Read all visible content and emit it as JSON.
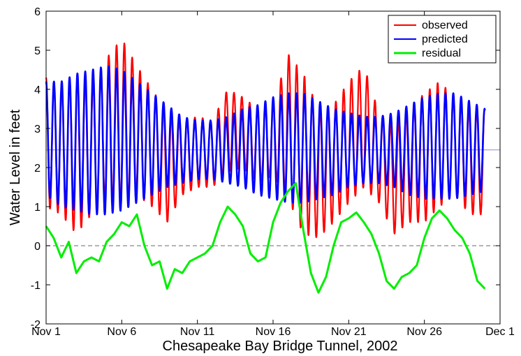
{
  "chart_data": {
    "type": "line",
    "title": "",
    "xlabel": "Chesapeake Bay Bridge Tunnel, 2002",
    "ylabel": "Water Level in feet",
    "xlim": [
      1,
      31
    ],
    "ylim": [
      -2,
      6
    ],
    "x_ticks": [
      {
        "value": 1,
        "label": "Nov 1"
      },
      {
        "value": 6,
        "label": "Nov 6"
      },
      {
        "value": 11,
        "label": "Nov 11"
      },
      {
        "value": 16,
        "label": "Nov 16"
      },
      {
        "value": 21,
        "label": "Nov 21"
      },
      {
        "value": 26,
        "label": "Nov 26"
      },
      {
        "value": 31,
        "label": "Dec 1"
      }
    ],
    "y_ticks": [
      -2,
      -1,
      0,
      1,
      2,
      3,
      4,
      5,
      6
    ],
    "reference_lines": [
      {
        "y": 0,
        "style": "dashed",
        "color": "#888888"
      },
      {
        "y": 2.45,
        "style": "solid",
        "color": "#8a8acc"
      }
    ],
    "legend_position": "top-right",
    "series": [
      {
        "name": "observed",
        "color": "#ff0000",
        "note": "semidiurnal tide, period ~12.42 h",
        "x": [
          1,
          2,
          3,
          4,
          5,
          6,
          7,
          8,
          9,
          10,
          11,
          12,
          13,
          14,
          15,
          16,
          17,
          18,
          19,
          20,
          21,
          22,
          23,
          24,
          25,
          26,
          27,
          28,
          29,
          30
        ],
        "high_envelope": [
          4.3,
          4.1,
          4.4,
          4.1,
          4.8,
          5.3,
          4.6,
          4.0,
          3.4,
          3.2,
          3.3,
          3.2,
          4.0,
          3.8,
          3.5,
          3.6,
          4.9,
          4.4,
          3.5,
          3.6,
          4.2,
          4.6,
          3.4,
          3.1,
          3.5,
          3.9,
          4.2,
          3.8,
          3.5,
          3.5
        ],
        "low_envelope": [
          1.0,
          0.8,
          0.3,
          0.8,
          1.2,
          1.0,
          1.3,
          1.0,
          0.6,
          1.3,
          1.5,
          1.5,
          1.9,
          2.0,
          1.6,
          1.8,
          1.2,
          0.3,
          0.2,
          0.6,
          1.1,
          1.5,
          1.1,
          0.3,
          0.6,
          0.6,
          1.0,
          1.3,
          0.8,
          0.8
        ]
      },
      {
        "name": "predicted",
        "color": "#0000ff",
        "note": "semidiurnal tide, period ~12.42 h",
        "x": [
          1,
          2,
          3,
          4,
          5,
          6,
          7,
          8,
          9,
          10,
          11,
          12,
          13,
          14,
          15,
          16,
          17,
          18,
          19,
          20,
          21,
          22,
          23,
          24,
          25,
          26,
          27,
          28,
          29,
          30
        ],
        "high_envelope": [
          4.2,
          4.2,
          4.4,
          4.5,
          4.6,
          4.5,
          4.2,
          3.9,
          3.6,
          3.3,
          3.2,
          3.2,
          3.3,
          3.5,
          3.6,
          3.8,
          3.9,
          3.9,
          3.7,
          3.5,
          3.4,
          3.3,
          3.3,
          3.4,
          3.6,
          3.8,
          3.9,
          3.9,
          3.7,
          3.5
        ],
        "low_envelope": [
          1.3,
          1.0,
          0.9,
          0.8,
          0.8,
          0.9,
          1.1,
          1.3,
          1.5,
          1.6,
          1.7,
          1.7,
          1.6,
          1.5,
          1.3,
          1.2,
          1.1,
          1.1,
          1.2,
          1.3,
          1.5,
          1.6,
          1.6,
          1.5,
          1.3,
          1.2,
          1.2,
          1.2,
          1.3,
          1.4
        ]
      },
      {
        "name": "residual",
        "color": "#00ee00",
        "x": [
          1.0,
          1.5,
          2.0,
          2.5,
          3.0,
          3.5,
          4.0,
          4.5,
          5.0,
          5.5,
          6.0,
          6.5,
          7.0,
          7.5,
          8.0,
          8.5,
          9.0,
          9.5,
          10.0,
          10.5,
          11.0,
          11.5,
          12.0,
          12.5,
          13.0,
          13.5,
          14.0,
          14.5,
          15.0,
          15.5,
          16.0,
          16.5,
          17.0,
          17.5,
          18.0,
          18.5,
          19.0,
          19.5,
          20.0,
          20.5,
          21.0,
          21.5,
          22.0,
          22.5,
          23.0,
          23.5,
          24.0,
          24.5,
          25.0,
          25.5,
          26.0,
          26.5,
          27.0,
          27.5,
          28.0,
          28.5,
          29.0,
          29.5,
          30.0
        ],
        "y": [
          0.5,
          0.2,
          -0.3,
          0.1,
          -0.7,
          -0.4,
          -0.3,
          -0.4,
          0.1,
          0.3,
          0.6,
          0.5,
          0.8,
          0.0,
          -0.5,
          -0.4,
          -1.1,
          -0.6,
          -0.7,
          -0.4,
          -0.3,
          -0.2,
          0.0,
          0.6,
          1.0,
          0.8,
          0.5,
          -0.2,
          -0.4,
          -0.3,
          0.6,
          1.1,
          1.4,
          1.6,
          0.4,
          -0.7,
          -1.2,
          -0.8,
          0.0,
          0.6,
          0.7,
          0.85,
          0.6,
          0.3,
          -0.2,
          -0.9,
          -1.1,
          -0.8,
          -0.7,
          -0.5,
          0.2,
          0.7,
          0.9,
          0.7,
          0.4,
          0.2,
          -0.2,
          -0.9,
          -1.1
        ]
      }
    ]
  }
}
